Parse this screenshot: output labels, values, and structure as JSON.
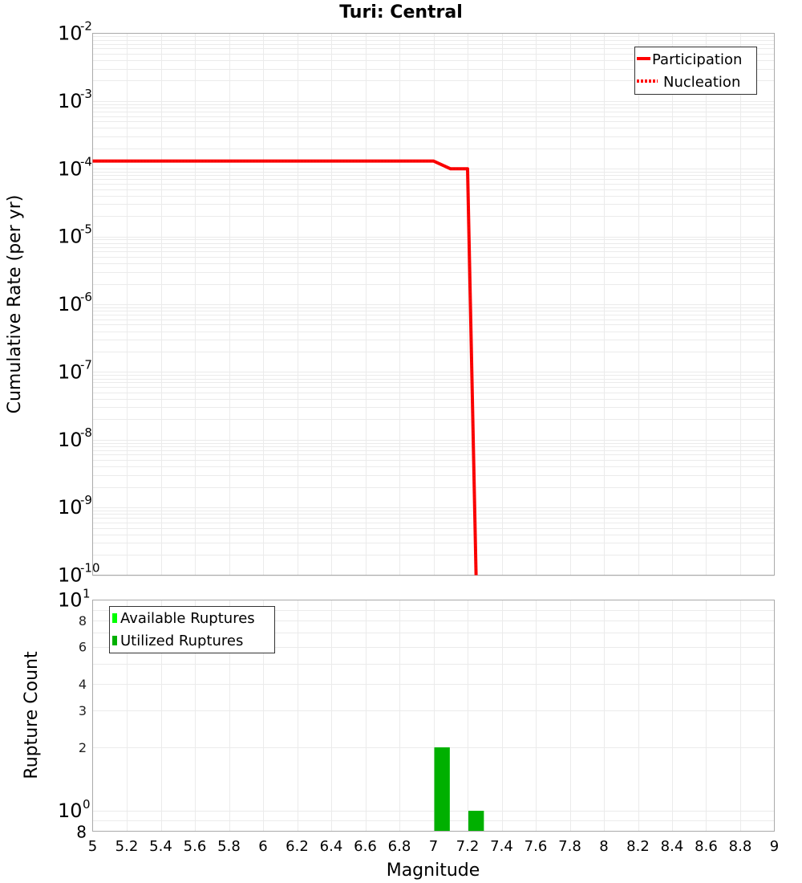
{
  "chart_data": [
    {
      "type": "line",
      "title": "Turi: Central",
      "xlabel": "",
      "ylabel": "Cumulative Rate (per yr)",
      "yscale": "log",
      "xlim": [
        5,
        9
      ],
      "ylim": [
        1e-10,
        0.01
      ],
      "y_ticks": [
        "10^-2",
        "10^-3",
        "10^-4",
        "10^-5",
        "10^-6",
        "10^-7",
        "10^-8",
        "10^-9",
        "10^-10"
      ],
      "grid": true,
      "legend_position": "top-right",
      "legend": [
        "Participation",
        "Nucleation"
      ],
      "series": [
        {
          "name": "Participation",
          "style": "solid",
          "color": "#ff0000",
          "x": [
            5.0,
            7.0,
            7.1,
            7.2,
            7.25
          ],
          "y": [
            0.00013,
            0.00013,
            0.0001,
            0.0001,
            1e-10
          ]
        },
        {
          "name": "Nucleation",
          "style": "dotted",
          "color": "#ff0000",
          "x": [
            5.0,
            7.0,
            7.1,
            7.2,
            7.25
          ],
          "y": [
            0.00013,
            0.00013,
            0.0001,
            0.0001,
            1e-10
          ]
        }
      ]
    },
    {
      "type": "bar",
      "title": "",
      "xlabel": "Magnitude",
      "ylabel": "Rupture Count",
      "yscale": "log",
      "xlim": [
        5,
        9
      ],
      "ylim": [
        0.8,
        10
      ],
      "y_ticks": [
        "8",
        "10^0",
        "2",
        "3",
        "4",
        "6",
        "8",
        "10^1"
      ],
      "x_ticks": [
        "5",
        "5.2",
        "5.4",
        "5.6",
        "5.8",
        "6",
        "6.2",
        "6.4",
        "6.6",
        "6.8",
        "7",
        "7.2",
        "7.4",
        "7.6",
        "7.8",
        "8",
        "8.2",
        "8.4",
        "8.6",
        "8.8",
        "9"
      ],
      "grid": true,
      "legend_position": "top-left",
      "legend": [
        "Available Ruptures",
        "Utilized Ruptures"
      ],
      "bin_width": 0.1,
      "series": [
        {
          "name": "Available Ruptures",
          "color": "#00ff00",
          "x": [
            7.05,
            7.25
          ],
          "values": [
            2,
            1
          ]
        },
        {
          "name": "Utilized Ruptures",
          "color": "#00b000",
          "x": [
            7.05,
            7.25
          ],
          "values": [
            2,
            1
          ]
        }
      ]
    }
  ],
  "labels": {
    "title": "Turi: Central",
    "top_ylabel": "Cumulative Rate (per yr)",
    "bottom_ylabel": "Rupture Count",
    "xlabel": "Magnitude",
    "legend_top": [
      "Participation",
      "Nucleation"
    ],
    "legend_bottom": [
      "Available Ruptures",
      "Utilized Ruptures"
    ]
  },
  "colors": {
    "line": "#ff0000",
    "available": "#00ff00",
    "utilized": "#00b000",
    "grid": "#ebebeb",
    "frame": "#aaaaaa"
  }
}
